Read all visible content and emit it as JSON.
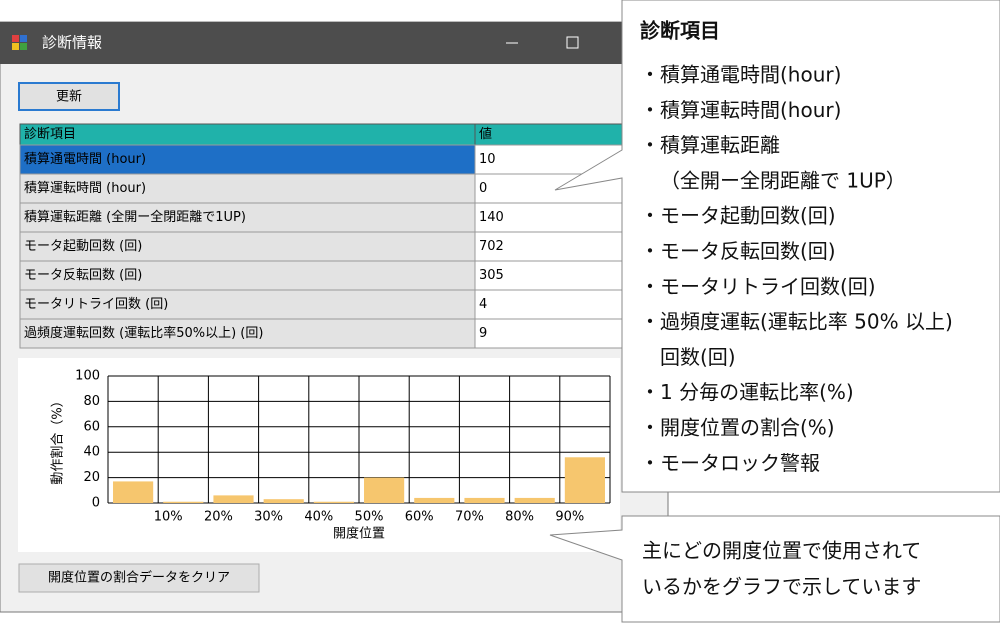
{
  "window": {
    "title": "診断情報"
  },
  "buttons": {
    "refresh": "更新",
    "clear": "開度位置の割合データをクリア"
  },
  "table": {
    "headers": [
      "診断項目",
      "値"
    ],
    "rows": [
      [
        "積算通電時間 (hour)",
        "10"
      ],
      [
        "積算運転時間 (hour)",
        "0"
      ],
      [
        "積算運転距離 (全開ー全閉距離で1UP)",
        "140"
      ],
      [
        "モータ起動回数 (回)",
        "702"
      ],
      [
        "モータ反転回数 (回)",
        "305"
      ],
      [
        "モータリトライ回数 (回)",
        "4"
      ],
      [
        "過頻度運転回数 (運転比率50%以上) (回)",
        "9"
      ]
    ]
  },
  "chart_data": {
    "type": "bar",
    "x_label": "開度位置",
    "y_label": "動作割合（%）",
    "categories": [
      null,
      "10%",
      "20%",
      "30%",
      "40%",
      "50%",
      "60%",
      "70%",
      "80%",
      "90%"
    ],
    "values": [
      17,
      1,
      6,
      3,
      1,
      20,
      4,
      4,
      4,
      36
    ],
    "color": "#f6c66e",
    "ylim": [
      0,
      100
    ],
    "yticks": [
      0,
      20,
      40,
      60,
      80,
      100
    ],
    "grid": true
  },
  "callouts": {
    "items_title": "診断項目",
    "items": [
      "・積算通電時間(hour)",
      "・積算運転時間(hour)",
      "・積算運転距離",
      "（全開ー全閉距離で 1UP）",
      "・モータ起動回数(回)",
      "・モータ反転回数(回)",
      "・モータリトライ回数(回)",
      "・過頻度運転(運転比率 50% 以上)",
      "回数(回)",
      "・1 分毎の運転比率(%)",
      "・開度位置の割合(%)",
      "・モータロック警報"
    ],
    "chart_note": [
      "主にどの開度位置で使用されて",
      "いるかをグラフで示しています"
    ]
  }
}
